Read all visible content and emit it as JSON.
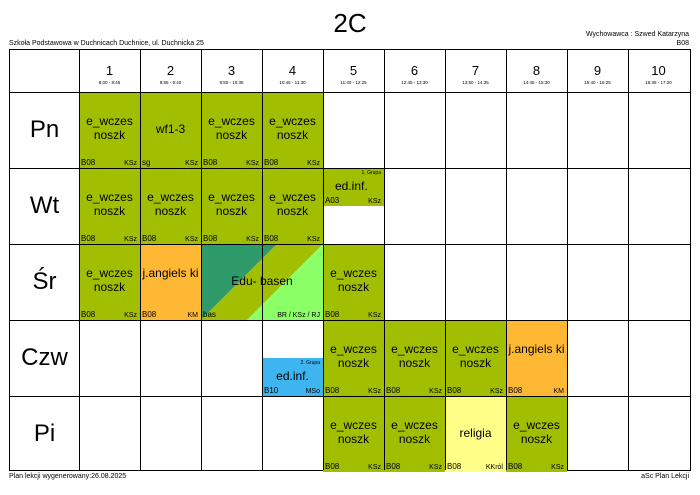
{
  "header": {
    "title": "2C",
    "school": "Szkoła Podstawowa w Duchnicach Duchnice, ul. Duchnicka 25",
    "teacher": "Wychowawca : Szwed Katarzyna",
    "room": "B08"
  },
  "footer": {
    "generated": "Plan lekcji wygenerowany:26.08.2025",
    "app": "aSc Plan Lekcji"
  },
  "periods": [
    {
      "num": "1",
      "time": "8:00 - 8:45"
    },
    {
      "num": "2",
      "time": "8:55 - 9:40"
    },
    {
      "num": "3",
      "time": "9:50 - 10:35"
    },
    {
      "num": "4",
      "time": "10:45 - 11:30"
    },
    {
      "num": "5",
      "time": "11:40 - 12:25"
    },
    {
      "num": "6",
      "time": "12:45 - 13:30"
    },
    {
      "num": "7",
      "time": "13:50 - 14:35"
    },
    {
      "num": "8",
      "time": "14:45 - 15:30"
    },
    {
      "num": "9",
      "time": "15:40 - 16:25"
    },
    {
      "num": "10",
      "time": "16:35 - 17:20"
    }
  ],
  "days": [
    "Pn",
    "Wt",
    "Śr",
    "Czw",
    "Pi"
  ],
  "colors": {
    "olive": "#a2be00",
    "orange": "#ffb833",
    "blue": "#3fb5f0",
    "yellow": "#ffff88",
    "edu_dark": "#2e9a6a",
    "edu_light": "#8bff66"
  },
  "lessons": {
    "pn1": {
      "subject": "e_wczes noszk",
      "room": "B08",
      "teacher": "KSz"
    },
    "pn2": {
      "subject": "wf1-3",
      "room": "sg",
      "teacher": "KSz"
    },
    "pn3": {
      "subject": "e_wczes noszk",
      "room": "B08",
      "teacher": "KSz"
    },
    "pn4": {
      "subject": "e_wczes noszk",
      "room": "B08",
      "teacher": "KSz"
    },
    "wt1": {
      "subject": "e_wczes noszk",
      "room": "B08",
      "teacher": "KSz"
    },
    "wt2": {
      "subject": "e_wczes noszk",
      "room": "B08",
      "teacher": "KSz"
    },
    "wt3": {
      "subject": "e_wczes noszk",
      "room": "B08",
      "teacher": "KSz"
    },
    "wt4": {
      "subject": "e_wczes noszk",
      "room": "B08",
      "teacher": "KSz"
    },
    "wt5": {
      "subject": "ed.inf.",
      "room": "A03",
      "teacher": "KSz",
      "group": "1. Grupa"
    },
    "sr1": {
      "subject": "e_wczes noszk",
      "room": "B08",
      "teacher": "KSz"
    },
    "sr2": {
      "subject": "j.angiels ki",
      "room": "B08",
      "teacher": "KM"
    },
    "sr34": {
      "subject": "Edu- basen",
      "room": "bas",
      "teacher": "BR / KSz / RJ"
    },
    "sr5": {
      "subject": "e_wczes noszk",
      "room": "B08",
      "teacher": "KSz"
    },
    "czw4": {
      "subject": "ed.inf.",
      "room": "B10",
      "teacher": "MSo",
      "group": "2. Grupa"
    },
    "czw5": {
      "subject": "e_wczes noszk",
      "room": "B08",
      "teacher": "KSz"
    },
    "czw6": {
      "subject": "e_wczes noszk",
      "room": "B08",
      "teacher": "KSz"
    },
    "czw7": {
      "subject": "e_wczes noszk",
      "room": "B08",
      "teacher": "KSz"
    },
    "czw8": {
      "subject": "j.angiels ki",
      "room": "B08",
      "teacher": "KM"
    },
    "pi5": {
      "subject": "e_wczes noszk",
      "room": "B08",
      "teacher": "KSz"
    },
    "pi6": {
      "subject": "e_wczes noszk",
      "room": "B08",
      "teacher": "KSz"
    },
    "pi7": {
      "subject": "religia",
      "room": "B08",
      "teacher": "KKról"
    },
    "pi8": {
      "subject": "e_wczes noszk",
      "room": "B08",
      "teacher": "KSz"
    }
  }
}
